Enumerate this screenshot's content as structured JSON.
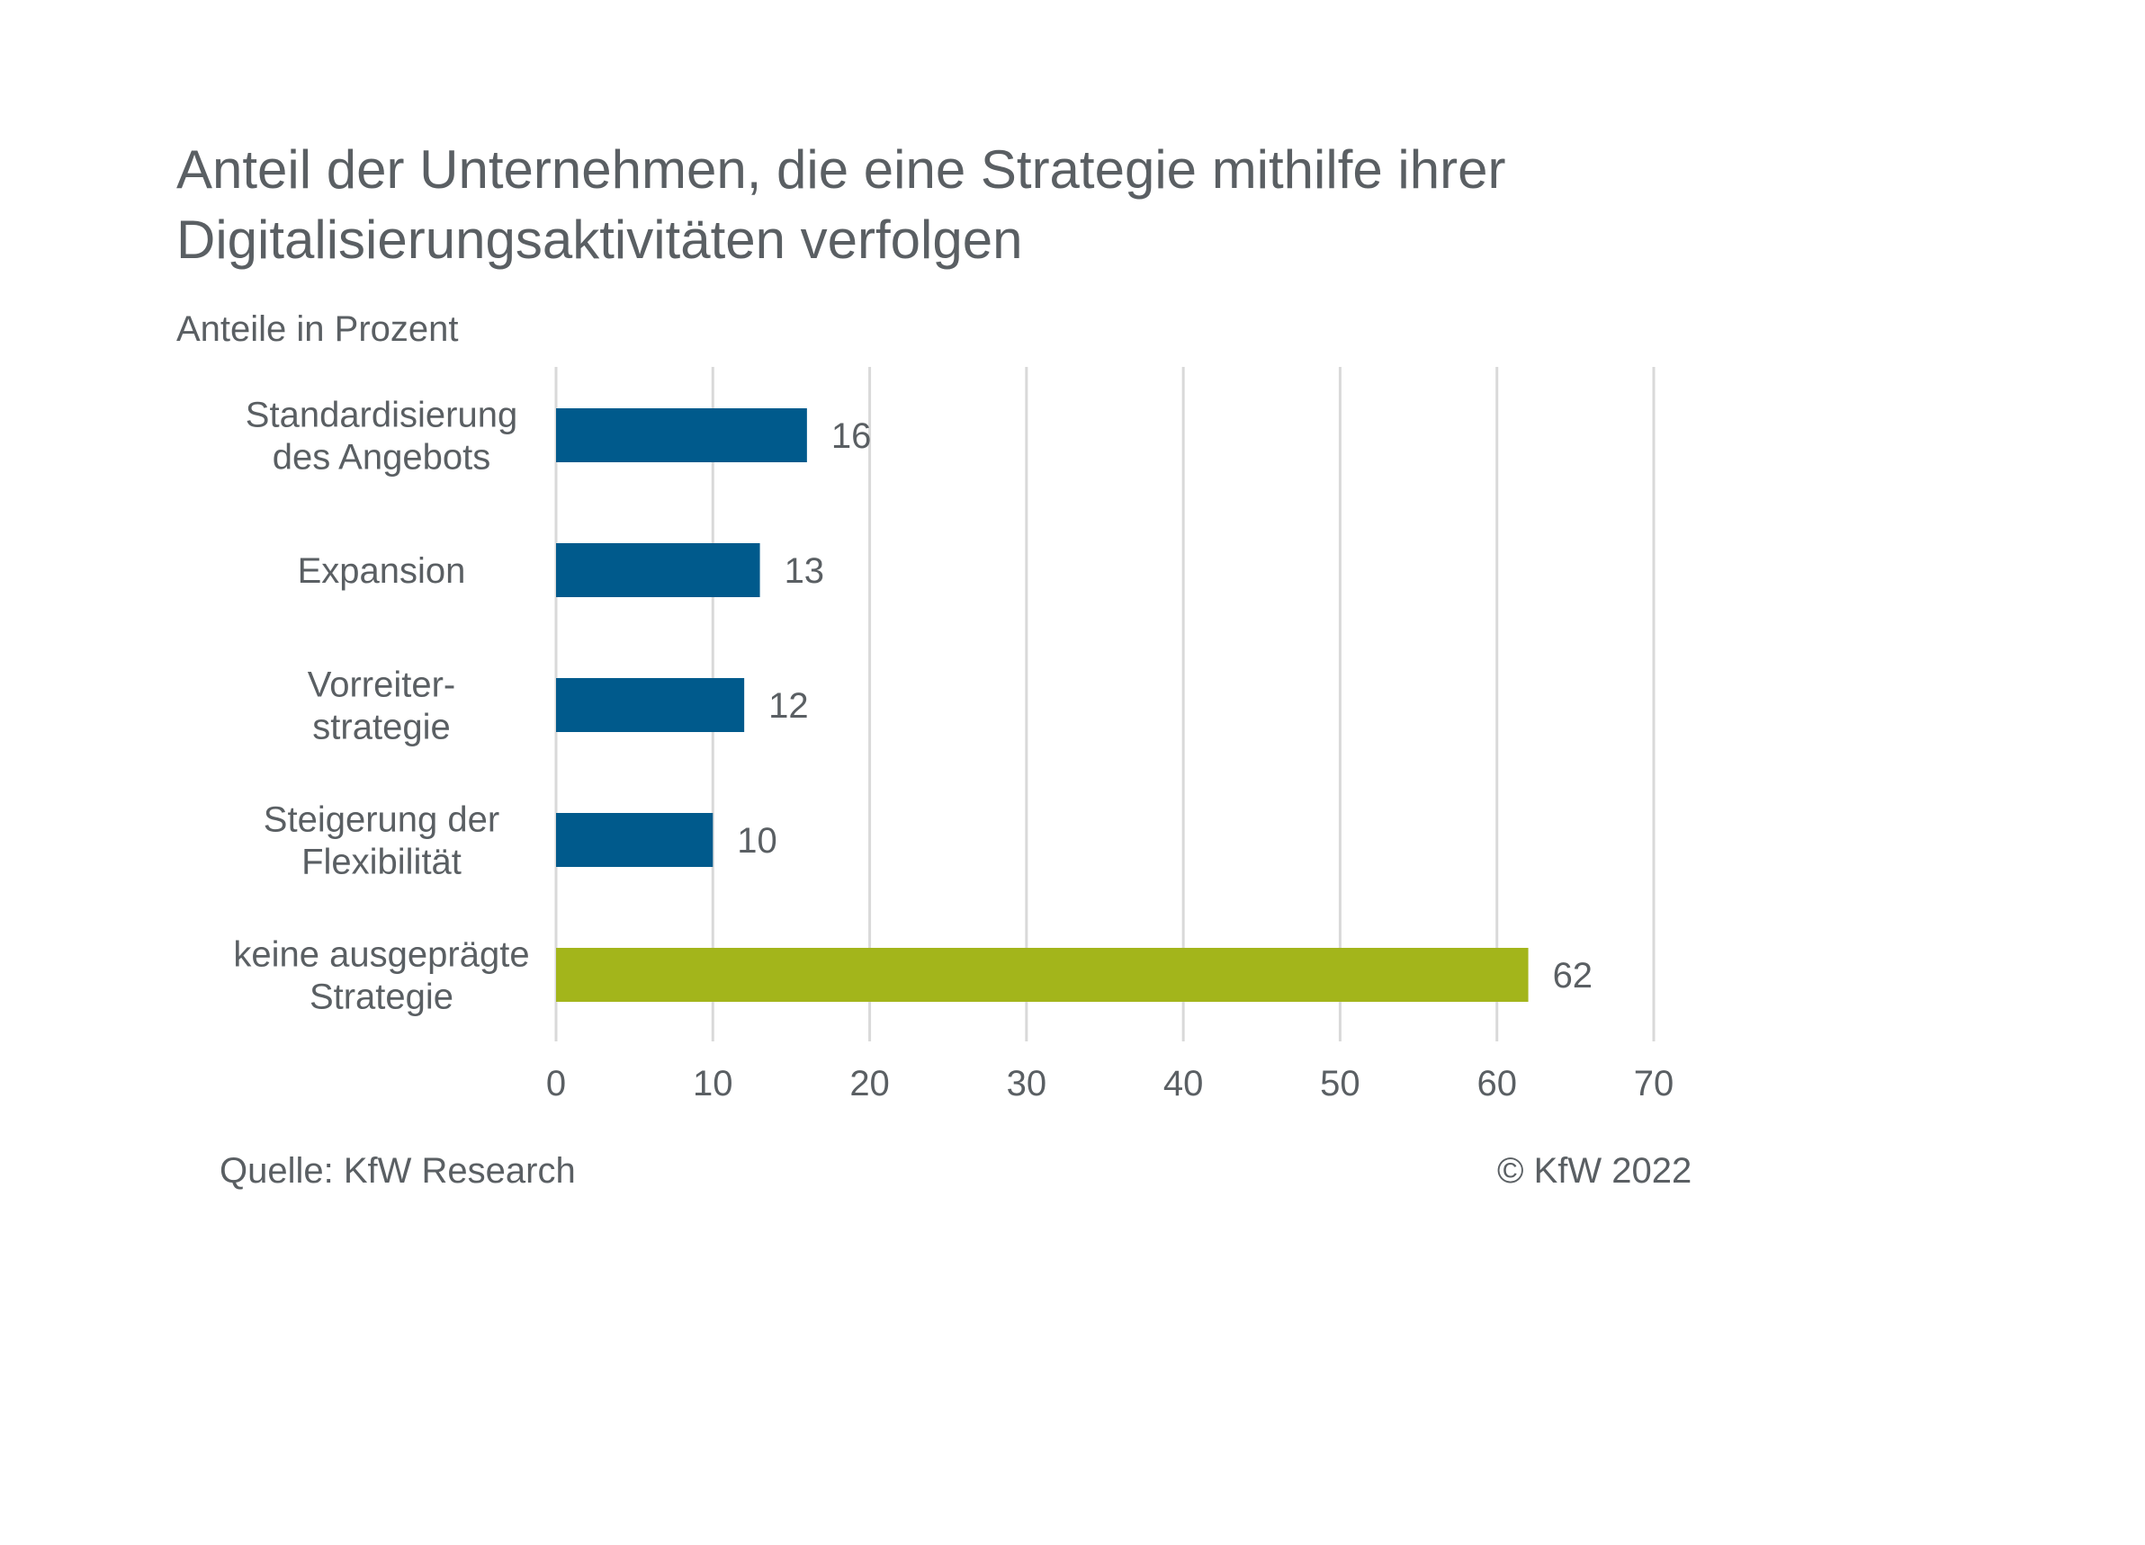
{
  "header": {
    "title": "Anteil der Unternehmen, die eine Strategie mithilfe ihrer\nDigitalisierungsaktivitäten verfolgen",
    "subtitle": "Anteile in Prozent"
  },
  "footer": {
    "source": "Quelle: KfW Research",
    "copyright": "© KfW 2022"
  },
  "colors": {
    "primary_bar": "#005a8c",
    "highlight_bar": "#a3b51b",
    "grid": "#d9d9d9",
    "text": "#5a5f63"
  },
  "chart_data": {
    "type": "bar",
    "orientation": "horizontal",
    "title": "Anteil der Unternehmen, die eine Strategie mithilfe ihrer Digitalisierungsaktivitäten verfolgen",
    "subtitle": "Anteile in Prozent",
    "categories": [
      [
        "Standardisierung",
        "des Angebots"
      ],
      [
        "Expansion"
      ],
      [
        "Vorreiter-",
        "strategie"
      ],
      [
        "Steigerung der",
        "Flexibilität"
      ],
      [
        "keine ausgeprägte",
        "Strategie"
      ]
    ],
    "values": [
      16,
      13,
      12,
      10,
      62
    ],
    "highlight_index": 4,
    "xlim": [
      0,
      70
    ],
    "xticks": [
      0,
      10,
      20,
      30,
      40,
      50,
      60,
      70
    ],
    "grid": true,
    "legend": "none",
    "data_labels": true
  }
}
